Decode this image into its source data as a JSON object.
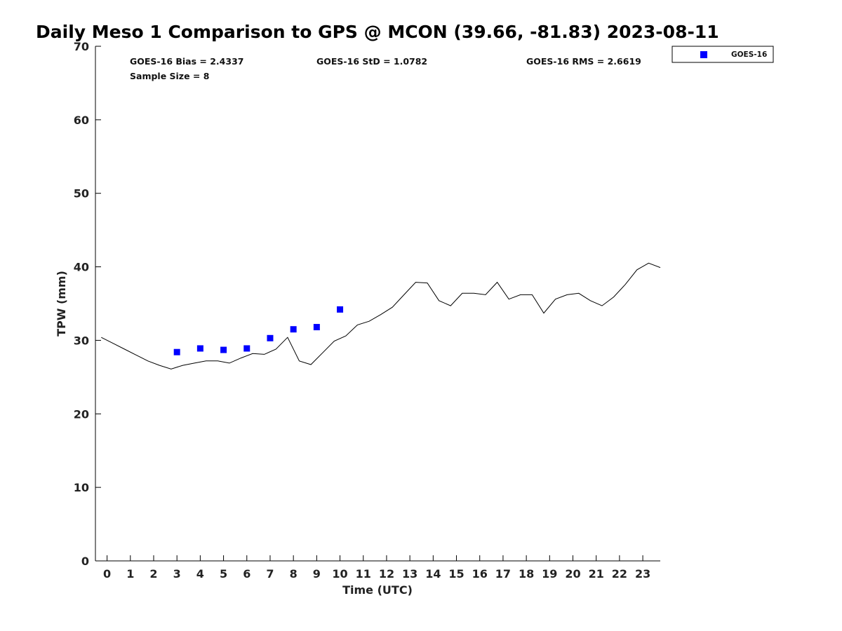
{
  "chart_data": {
    "type": "scatter",
    "title": "Daily Meso 1 Comparison to GPS @ MCON (39.66, -81.83) 2023-08-11",
    "xlabel": "Time (UTC)",
    "ylabel": "TPW (mm)",
    "xlim": [
      -0.5,
      23.75
    ],
    "ylim": [
      0,
      70
    ],
    "x_ticks": [
      0,
      1,
      2,
      3,
      4,
      5,
      6,
      7,
      8,
      9,
      10,
      11,
      12,
      13,
      14,
      15,
      16,
      17,
      18,
      19,
      20,
      21,
      22,
      23
    ],
    "y_ticks": [
      0,
      10,
      20,
      30,
      40,
      50,
      60,
      70
    ],
    "grid": false,
    "legend_position": "outside-top-right",
    "stats": {
      "bias": "GOES-16 Bias = 2.4337",
      "std": "GOES-16 StD = 1.0782",
      "rms": "GOES-16 RMS = 2.6619",
      "sample_size": "Sample Size = 8"
    },
    "series": [
      {
        "name": "GOES-16",
        "kind": "scatter",
        "marker": "square",
        "color": "#0000ff",
        "x": [
          3.0,
          4.0,
          5.0,
          6.0,
          7.0,
          8.0,
          9.0,
          10.0
        ],
        "y": [
          28.4,
          28.9,
          28.7,
          28.9,
          30.3,
          31.5,
          31.8,
          34.2
        ]
      },
      {
        "kind": "line",
        "color": "#000000",
        "x": [
          -0.25,
          0.25,
          0.75,
          1.25,
          1.75,
          2.25,
          2.75,
          3.25,
          3.75,
          4.25,
          4.75,
          5.25,
          5.75,
          6.25,
          6.75,
          7.25,
          7.75,
          8.25,
          8.75,
          9.25,
          9.75,
          10.25,
          10.75,
          11.25,
          11.75,
          12.25,
          12.75,
          13.25,
          13.75,
          14.25,
          14.75,
          15.25,
          15.75,
          16.25,
          16.75,
          17.25,
          17.75,
          18.25,
          18.75,
          19.25,
          19.75,
          20.25,
          20.75,
          21.25,
          21.75,
          22.25,
          22.75,
          23.25,
          23.75
        ],
        "y": [
          30.4,
          29.6,
          28.8,
          28.0,
          27.2,
          26.6,
          26.1,
          26.6,
          26.9,
          27.2,
          27.2,
          26.9,
          27.6,
          28.2,
          28.1,
          28.8,
          30.4,
          27.2,
          26.7,
          28.3,
          29.9,
          30.6,
          32.1,
          32.6,
          33.5,
          34.5,
          36.2,
          37.9,
          37.8,
          35.4,
          34.7,
          36.4,
          36.4,
          36.2,
          37.9,
          35.6,
          36.2,
          36.2,
          33.7,
          35.6,
          36.2,
          36.4,
          35.4,
          34.7,
          35.9,
          37.6,
          39.6,
          40.5,
          39.9
        ]
      }
    ]
  }
}
